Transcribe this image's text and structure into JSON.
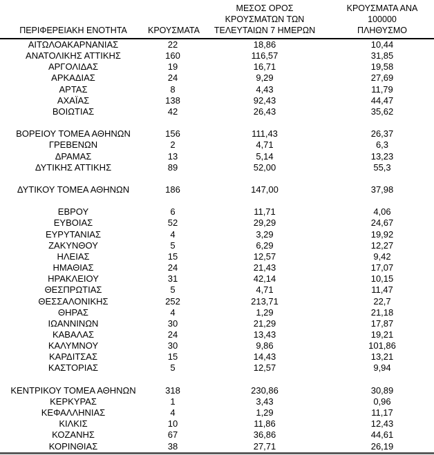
{
  "palette": {
    "text_color": "#000000",
    "header_rule_color": "#000000",
    "bottom_rule_color": "#595959",
    "background": "#ffffff"
  },
  "table": {
    "headers": {
      "region": "ΠΕΡΙΦΕΡΕΙΑΚΗ ΕΝΟΤΗΤΑ",
      "cases": "ΚΡΟΥΣΜΑΤΑ",
      "avg7": "ΜΕΣΟΣ ΟΡΟΣ\nΚΡΟΥΣΜΑΤΩΝ ΤΩΝ\nΤΕΛΕΥΤΑΙΩΝ 7 ΗΜΕΡΩΝ",
      "per100k": "ΚΡΟΥΣΜΑΤΑ ΑΝΑ 100000\nΠΛΗΘΥΣΜΟ"
    },
    "rows": [
      {
        "region": "ΑΙΤΩΛΟΑΚΑΡΝΑΝΙΑΣ",
        "cases": "22",
        "avg7": "18,86",
        "per100k": "10,44"
      },
      {
        "region": "ΑΝΑΤΟΛΙΚΗΣ ΑΤΤΙΚΗΣ",
        "cases": "160",
        "avg7": "116,57",
        "per100k": "31,85"
      },
      {
        "region": "ΑΡΓΟΛΙΔΑΣ",
        "cases": "19",
        "avg7": "16,71",
        "per100k": "19,58"
      },
      {
        "region": "ΑΡΚΑΔΙΑΣ",
        "cases": "24",
        "avg7": "9,29",
        "per100k": "27,69"
      },
      {
        "region": "ΑΡΤΑΣ",
        "cases": "8",
        "avg7": "4,43",
        "per100k": "11,79"
      },
      {
        "region": "ΑΧΑΪΑΣ",
        "cases": "138",
        "avg7": "92,43",
        "per100k": "44,47"
      },
      {
        "region": "ΒΟΙΩΤΙΑΣ",
        "cases": "42",
        "avg7": "26,43",
        "per100k": "35,62"
      },
      {
        "spacer": true
      },
      {
        "region": "ΒΟΡΕΙΟΥ ΤΟΜΕΑ ΑΘΗΝΩΝ",
        "cases": "156",
        "avg7": "111,43",
        "per100k": "26,37"
      },
      {
        "region": "ΓΡΕΒΕΝΩΝ",
        "cases": "2",
        "avg7": "4,71",
        "per100k": "6,3"
      },
      {
        "region": "ΔΡΑΜΑΣ",
        "cases": "13",
        "avg7": "5,14",
        "per100k": "13,23"
      },
      {
        "region": "ΔΥΤΙΚΗΣ ΑΤΤΙΚΗΣ",
        "cases": "89",
        "avg7": "52,00",
        "per100k": "55,3"
      },
      {
        "spacer": true
      },
      {
        "region": "ΔΥΤΙΚΟΥ ΤΟΜΕΑ ΑΘΗΝΩΝ",
        "cases": "186",
        "avg7": "147,00",
        "per100k": "37,98"
      },
      {
        "spacer": true
      },
      {
        "region": "ΕΒΡΟΥ",
        "cases": "6",
        "avg7": "11,71",
        "per100k": "4,06"
      },
      {
        "region": "ΕΥΒΟΙΑΣ",
        "cases": "52",
        "avg7": "29,29",
        "per100k": "24,67"
      },
      {
        "region": "ΕΥΡΥΤΑΝΙΑΣ",
        "cases": "4",
        "avg7": "3,29",
        "per100k": "19,92"
      },
      {
        "region": "ΖΑΚΥΝΘΟΥ",
        "cases": "5",
        "avg7": "6,29",
        "per100k": "12,27"
      },
      {
        "region": "ΗΛΕΙΑΣ",
        "cases": "15",
        "avg7": "12,57",
        "per100k": "9,42"
      },
      {
        "region": "ΗΜΑΘΙΑΣ",
        "cases": "24",
        "avg7": "21,43",
        "per100k": "17,07"
      },
      {
        "region": "ΗΡΑΚΛΕΙΟΥ",
        "cases": "31",
        "avg7": "42,14",
        "per100k": "10,15"
      },
      {
        "region": "ΘΕΣΠΡΩΤΙΑΣ",
        "cases": "5",
        "avg7": "4,71",
        "per100k": "11,47"
      },
      {
        "region": "ΘΕΣΣΑΛΟΝΙΚΗΣ",
        "cases": "252",
        "avg7": "213,71",
        "per100k": "22,7"
      },
      {
        "region": "ΘΗΡΑΣ",
        "cases": "4",
        "avg7": "1,29",
        "per100k": "21,18"
      },
      {
        "region": "ΙΩΑΝΝΙΝΩΝ",
        "cases": "30",
        "avg7": "21,29",
        "per100k": "17,87"
      },
      {
        "region": "ΚΑΒΑΛΑΣ",
        "cases": "24",
        "avg7": "13,43",
        "per100k": "19,21"
      },
      {
        "region": "ΚΑΛΥΜΝΟΥ",
        "cases": "30",
        "avg7": "9,86",
        "per100k": "101,86"
      },
      {
        "region": "ΚΑΡΔΙΤΣΑΣ",
        "cases": "15",
        "avg7": "14,43",
        "per100k": "13,21"
      },
      {
        "region": "ΚΑΣΤΟΡΙΑΣ",
        "cases": "5",
        "avg7": "12,57",
        "per100k": "9,94"
      },
      {
        "spacer": true
      },
      {
        "region": "ΚΕΝΤΡΙΚΟΥ ΤΟΜΕΑ ΑΘΗΝΩΝ",
        "cases": "318",
        "avg7": "230,86",
        "per100k": "30,89"
      },
      {
        "region": "ΚΕΡΚΥΡΑΣ",
        "cases": "1",
        "avg7": "3,43",
        "per100k": "0,96"
      },
      {
        "region": "ΚΕΦΑΛΛΗΝΙΑΣ",
        "cases": "4",
        "avg7": "1,29",
        "per100k": "11,17"
      },
      {
        "region": "ΚΙΛΚΙΣ",
        "cases": "10",
        "avg7": "11,86",
        "per100k": "12,43"
      },
      {
        "region": "ΚΟΖΑΝΗΣ",
        "cases": "67",
        "avg7": "36,86",
        "per100k": "44,61"
      },
      {
        "region": "ΚΟΡΙΝΘΙΑΣ",
        "cases": "38",
        "avg7": "27,71",
        "per100k": "26,19"
      }
    ]
  }
}
